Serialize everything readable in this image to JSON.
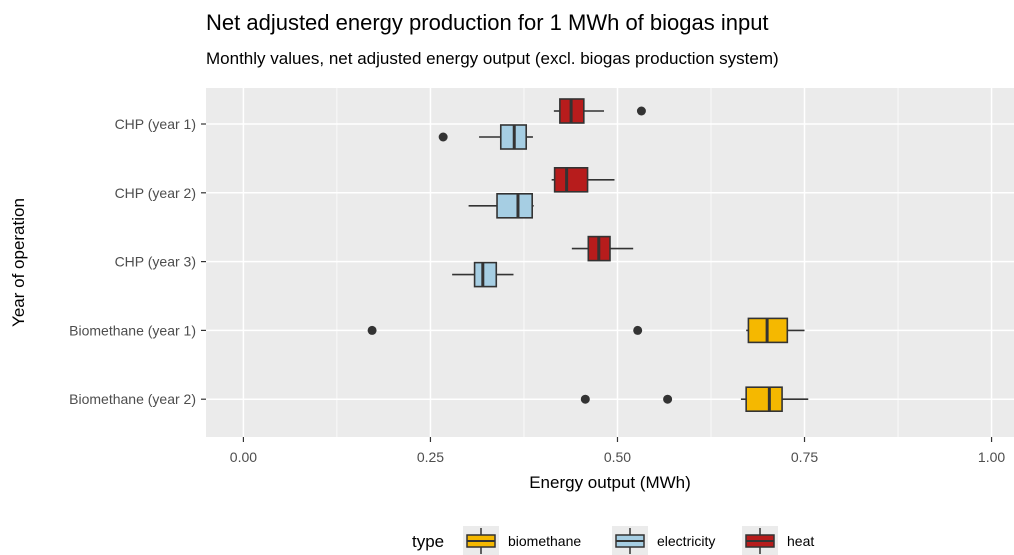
{
  "chart_data": {
    "type": "boxplot",
    "orientation": "horizontal",
    "title": "Net adjusted energy production for 1 MWh of biogas input",
    "subtitle": "Monthly values, net adjusted energy output (excl. biogas production system)",
    "xlabel": "Energy output (MWh)",
    "ylabel": "Year of operation",
    "xlim": [
      -0.05,
      1.03
    ],
    "x_ticks": [
      0.0,
      0.25,
      0.5,
      0.75,
      1.0
    ],
    "x_tick_labels": [
      "0.00",
      "0.25",
      "0.50",
      "0.75",
      "1.00"
    ],
    "categories": [
      "CHP (year 1)",
      "CHP (year 2)",
      "CHP (year 3)",
      "Biomethane (year 1)",
      "Biomethane (year 2)"
    ],
    "grid": true,
    "legend": {
      "title": "type",
      "position": "bottom",
      "entries": [
        "biomethane",
        "electricity",
        "heat"
      ]
    },
    "series": [
      {
        "name": "biomethane",
        "color": "#F5B800",
        "boxes": [
          {
            "category": "Biomethane (year 1)",
            "whisker_low": 0.672,
            "q1": 0.675,
            "median": 0.7,
            "q3": 0.727,
            "whisker_high": 0.75,
            "outliers": [
              0.172,
              0.527
            ]
          },
          {
            "category": "Biomethane (year 2)",
            "whisker_low": 0.665,
            "q1": 0.672,
            "median": 0.703,
            "q3": 0.72,
            "whisker_high": 0.755,
            "outliers": [
              0.457,
              0.567
            ]
          }
        ]
      },
      {
        "name": "electricity",
        "color": "#A6CEE3",
        "boxes": [
          {
            "category": "CHP (year 1)",
            "whisker_low": 0.315,
            "q1": 0.344,
            "median": 0.362,
            "q3": 0.378,
            "whisker_high": 0.387,
            "outliers": [
              0.267
            ]
          },
          {
            "category": "CHP (year 2)",
            "whisker_low": 0.301,
            "q1": 0.339,
            "median": 0.367,
            "q3": 0.386,
            "whisker_high": 0.388,
            "outliers": []
          },
          {
            "category": "CHP (year 3)",
            "whisker_low": 0.279,
            "q1": 0.309,
            "median": 0.32,
            "q3": 0.338,
            "whisker_high": 0.361,
            "outliers": []
          }
        ]
      },
      {
        "name": "heat",
        "color": "#B71C1C",
        "boxes": [
          {
            "category": "CHP (year 1)",
            "whisker_low": 0.415,
            "q1": 0.423,
            "median": 0.438,
            "q3": 0.455,
            "whisker_high": 0.482,
            "outliers": [
              0.532
            ]
          },
          {
            "category": "CHP (year 2)",
            "whisker_low": 0.412,
            "q1": 0.416,
            "median": 0.432,
            "q3": 0.46,
            "whisker_high": 0.496,
            "outliers": []
          },
          {
            "category": "CHP (year 3)",
            "whisker_low": 0.439,
            "q1": 0.461,
            "median": 0.475,
            "q3": 0.49,
            "whisker_high": 0.521,
            "outliers": []
          }
        ]
      }
    ]
  }
}
